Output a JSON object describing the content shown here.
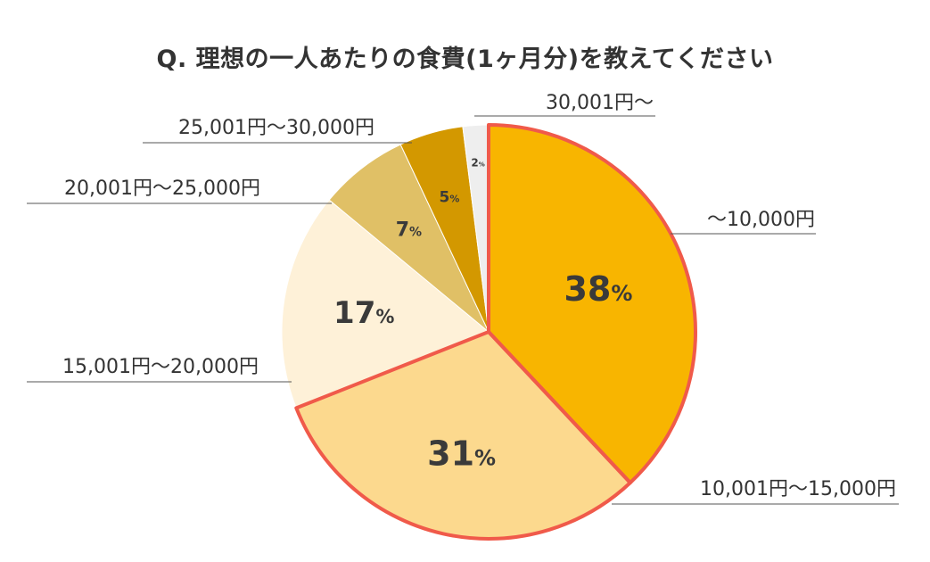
{
  "chart_data": {
    "type": "pie",
    "title": "Q. 理想の一人あたりの食費(1ヶ月分)を教えてください",
    "percent_unit": "%",
    "slices": [
      {
        "label": "〜10,000円",
        "value": 38,
        "color": "#F8B500",
        "highlight": true
      },
      {
        "label": "10,001円〜15,000円",
        "value": 31,
        "color": "#FCD98E",
        "highlight": true
      },
      {
        "label": "15,001円〜20,000円",
        "value": 17,
        "color": "#FEF1D8",
        "highlight": false
      },
      {
        "label": "20,001円〜25,000円",
        "value": 7,
        "color": "#E0C066",
        "highlight": false
      },
      {
        "label": "25,001円〜30,000円",
        "value": 5,
        "color": "#D39800",
        "highlight": false
      },
      {
        "label": "30,001円〜",
        "value": 2,
        "color": "#EEEEEE",
        "highlight": false
      }
    ],
    "highlight_border_color": "#F05A4A"
  }
}
